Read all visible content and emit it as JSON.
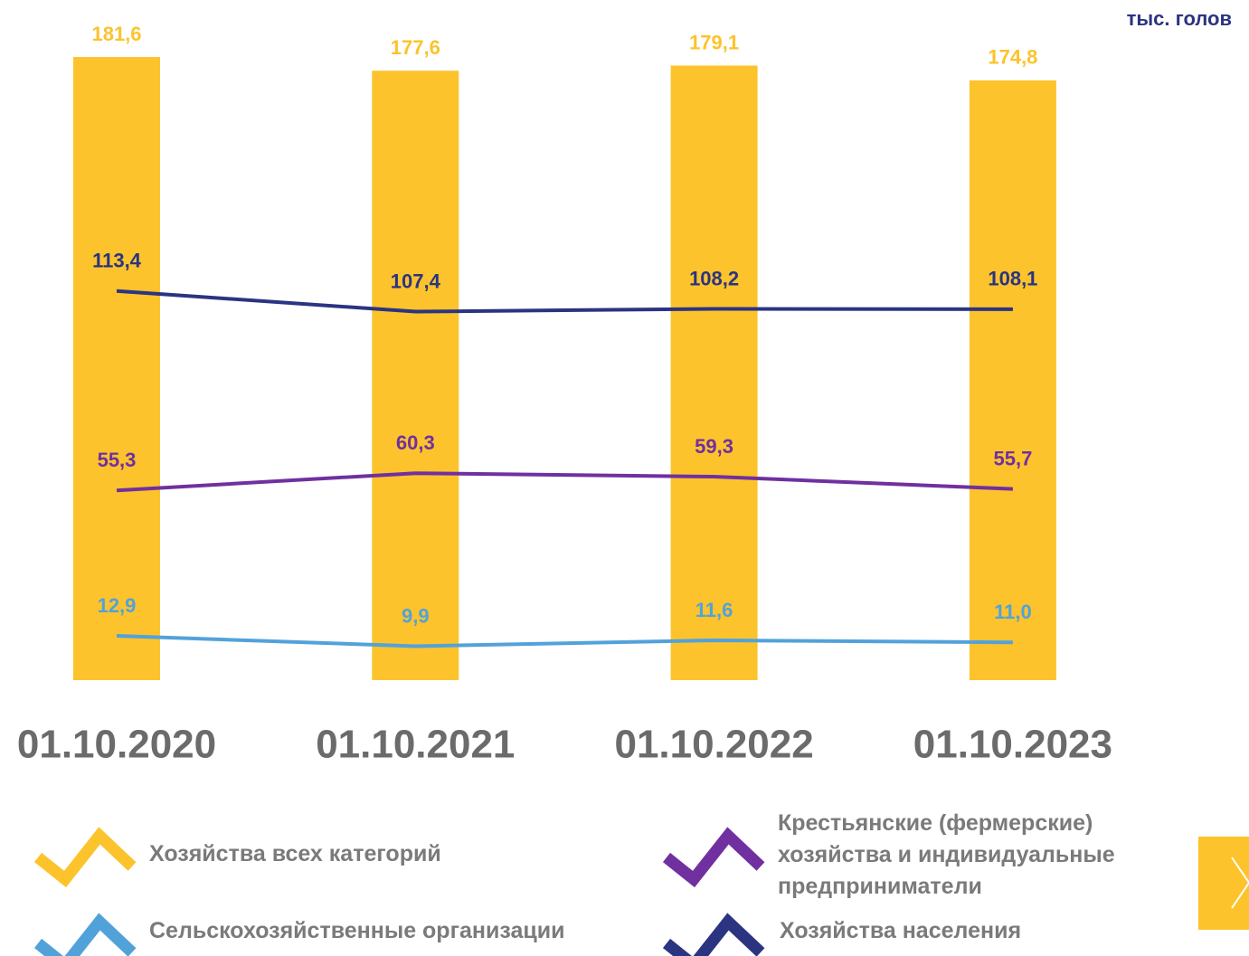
{
  "chart_data": {
    "type": "bar",
    "unit": "тыс. голов",
    "categories": [
      "01.10.2020",
      "01.10.2021",
      "01.10.2022",
      "01.10.2023"
    ],
    "ylim": [
      0,
      182
    ],
    "series": [
      {
        "name": "Хозяйства всех категорий",
        "type": "bar",
        "color": "#fcc32c",
        "values": [
          181.6,
          177.6,
          179.1,
          174.8
        ],
        "value_labels": [
          "181,6",
          "177,6",
          "179,1",
          "174,8"
        ]
      },
      {
        "name": "Хозяйства населения",
        "type": "line",
        "color": "#2b3481",
        "values": [
          113.4,
          107.4,
          108.2,
          108.1
        ],
        "value_labels": [
          "113,4",
          "107,4",
          "108,2",
          "108,1"
        ]
      },
      {
        "name": "Крестьянские (фермерские) хозяйства и индивидуальные предприниматели",
        "type": "line",
        "color": "#7030a0",
        "values": [
          55.3,
          60.3,
          59.3,
          55.7
        ],
        "value_labels": [
          "55,3",
          "60,3",
          "59,3",
          "55,7"
        ]
      },
      {
        "name": "Сельскохозяйственные организации",
        "type": "line",
        "color": "#52a2da",
        "values": [
          12.9,
          9.9,
          11.6,
          11.0
        ],
        "value_labels": [
          "12,9",
          "9,9",
          "11,6",
          "11,0"
        ]
      }
    ]
  }
}
